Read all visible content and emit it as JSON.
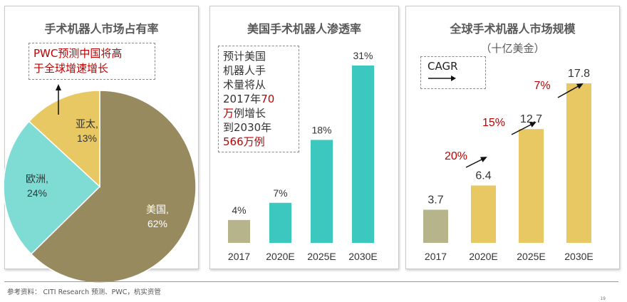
{
  "chart_data": [
    {
      "type": "pie",
      "title": "手术机器人市场占有率",
      "slices": [
        {
          "label": "美国,",
          "value_label": "62%",
          "value": 62,
          "color": "#978a5f"
        },
        {
          "label": "欧洲,",
          "value_label": "24%",
          "value": 24,
          "color": "#7fdcd5"
        },
        {
          "label": "亚太,",
          "value_label": "13%",
          "value": 13,
          "color": "#e8c863"
        }
      ],
      "annotation": [
        "PWC预测中国将高",
        "于全球增速增长"
      ]
    },
    {
      "type": "bar",
      "title": "美国手术机器人渗透率",
      "categories": [
        "2017",
        "2020E",
        "2025E",
        "2030E"
      ],
      "values": [
        4,
        7,
        18,
        31
      ],
      "value_labels": [
        "4%",
        "7%",
        "18%",
        "31%"
      ],
      "bar_colors": [
        "#b5b48a",
        "#3cc8bf",
        "#3cc8bf",
        "#3cc8bf"
      ],
      "annotation": {
        "lines": [
          [
            {
              "text": "预计美国",
              "red": false
            }
          ],
          [
            {
              "text": "机器人手",
              "red": false
            }
          ],
          [
            {
              "text": "术量将从",
              "red": false
            }
          ],
          [
            {
              "text": "2017年",
              "red": false
            },
            {
              "text": "70",
              "red": true
            }
          ],
          [
            {
              "text": "万",
              "red": true
            },
            {
              "text": "例增长",
              "red": false
            }
          ],
          [
            {
              "text": "到2030年",
              "red": false
            }
          ],
          [
            {
              "text": "566万例",
              "red": true
            }
          ]
        ]
      }
    },
    {
      "type": "bar",
      "title": "全球手术机器人市场规模",
      "subtitle": "（十亿美金）",
      "categories": [
        "2017",
        "2020E",
        "2025E",
        "2030E"
      ],
      "values": [
        3.7,
        6.4,
        12.7,
        17.8
      ],
      "value_labels": [
        "3.7",
        "6.4",
        "12.7",
        "17.8"
      ],
      "bar_colors": [
        "#b5b48a",
        "#e8c863",
        "#e8c863",
        "#e8c863"
      ],
      "growth_labels": [
        "20%",
        "15%",
        "7%"
      ],
      "legend_label": "CAGR"
    }
  ],
  "colors": {
    "annotation_red": "#c00000"
  },
  "footer": {
    "source": "参考资料： CITI Research 预测、PWC，杭实资管",
    "page": "19"
  }
}
